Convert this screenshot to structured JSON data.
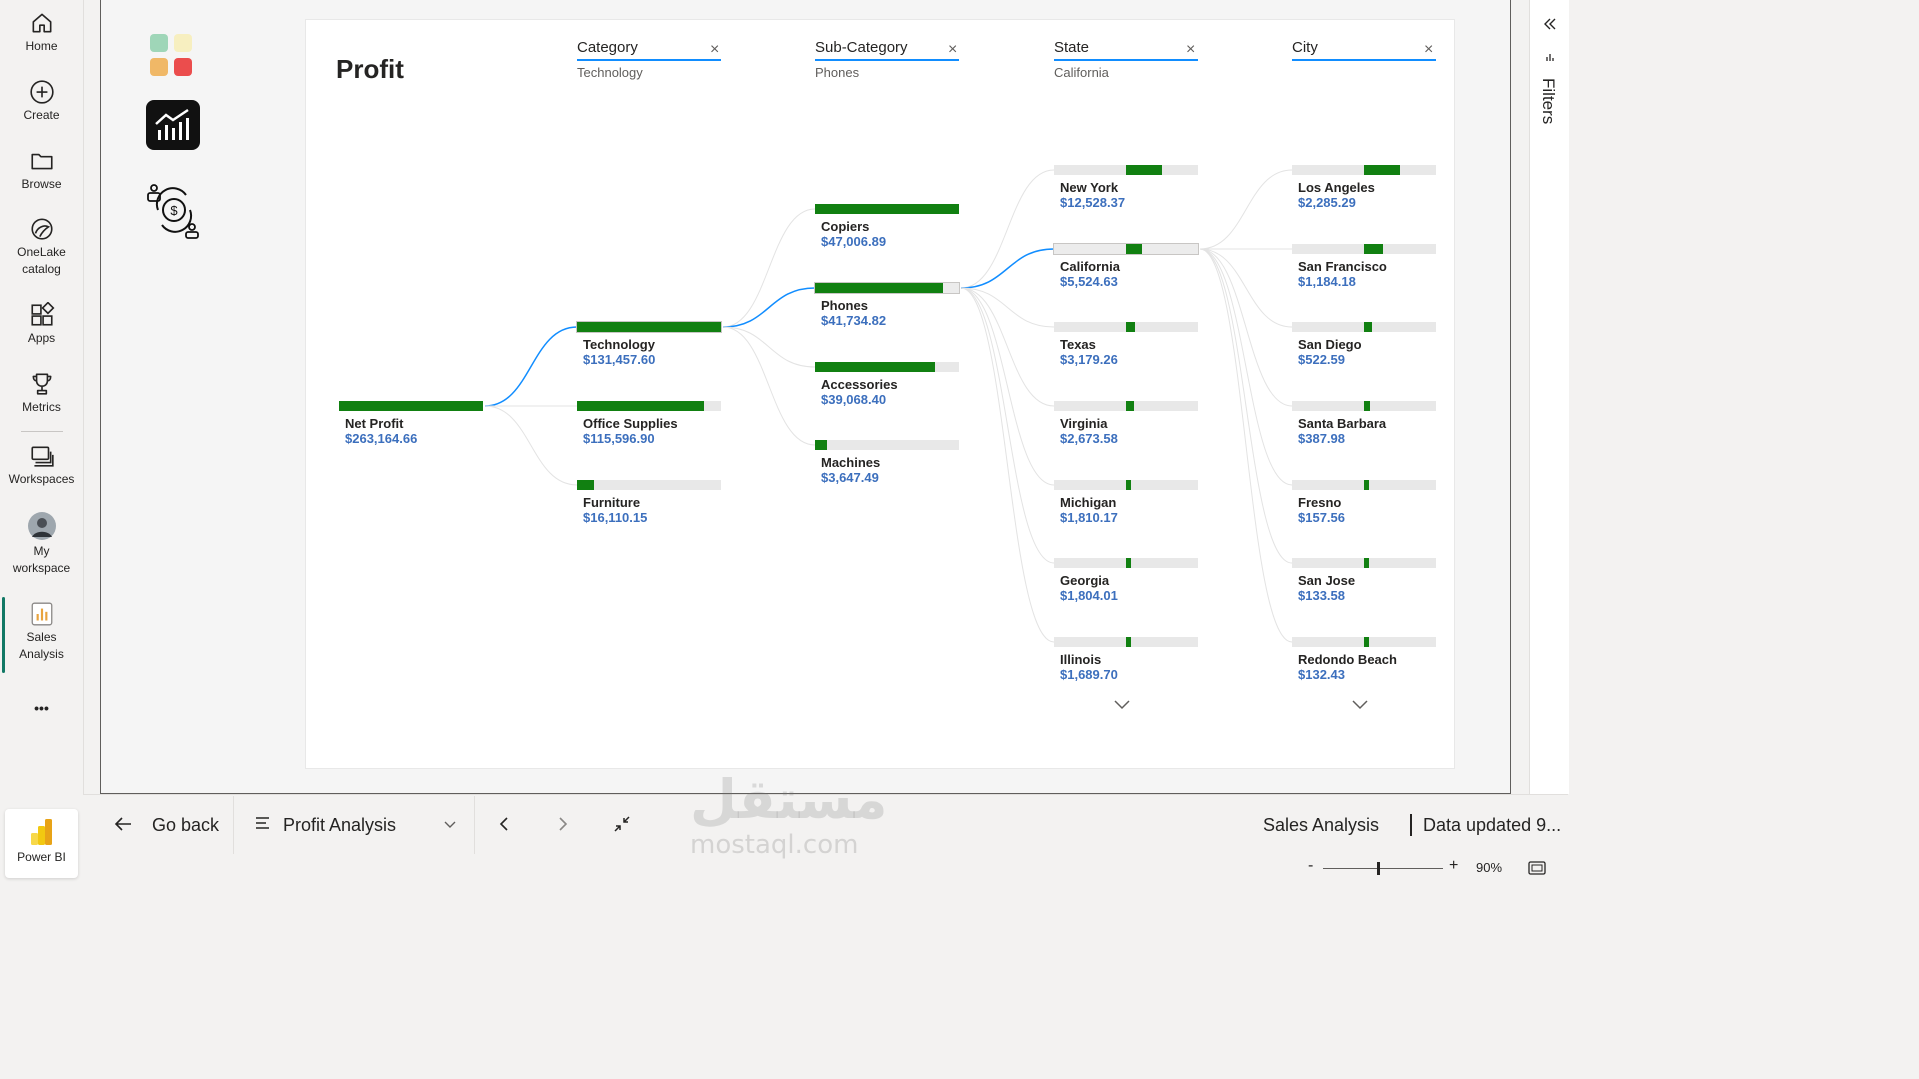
{
  "nav": {
    "home": "Home",
    "create": "Create",
    "browse": "Browse",
    "onelake_l1": "OneLake",
    "onelake_l2": "catalog",
    "apps": "Apps",
    "metrics": "Metrics",
    "workspaces": "Workspaces",
    "myws_l1": "My",
    "myws_l2": "workspace",
    "sales_l1": "Sales",
    "sales_l2": "Analysis",
    "more": "•••",
    "powerbi": "Power BI"
  },
  "filters_pane_label": "Filters",
  "visual": {
    "title": "Profit",
    "levels": [
      {
        "title": "Category",
        "selected": "Technology"
      },
      {
        "title": "Sub-Category",
        "selected": "Phones"
      },
      {
        "title": "State",
        "selected": "California"
      },
      {
        "title": "City",
        "selected": ""
      }
    ],
    "root": {
      "label": "Net Profit",
      "value": "$263,164.66"
    },
    "category": [
      {
        "label": "Technology",
        "value": "$131,457.60",
        "share": 1.0
      },
      {
        "label": "Office Supplies",
        "value": "$115,596.90",
        "share": 0.88
      },
      {
        "label": "Furniture",
        "value": "$16,110.15",
        "share": 0.12
      }
    ],
    "subcategory": [
      {
        "label": "Copiers",
        "value": "$47,006.89",
        "share": 1.0
      },
      {
        "label": "Phones",
        "value": "$41,734.82",
        "share": 0.89
      },
      {
        "label": "Accessories",
        "value": "$39,068.40",
        "share": 0.83
      },
      {
        "label": "Machines",
        "value": "$3,647.49",
        "share": 0.08
      }
    ],
    "state": [
      {
        "label": "New York",
        "value": "$12,528.37",
        "share": 0.5
      },
      {
        "label": "California",
        "value": "$5,524.63",
        "share": 0.22
      },
      {
        "label": "Texas",
        "value": "$3,179.26",
        "share": 0.13
      },
      {
        "label": "Virginia",
        "value": "$2,673.58",
        "share": 0.11
      },
      {
        "label": "Michigan",
        "value": "$1,810.17",
        "share": 0.07
      },
      {
        "label": "Georgia",
        "value": "$1,804.01",
        "share": 0.07
      },
      {
        "label": "Illinois",
        "value": "$1,689.70",
        "share": 0.07
      }
    ],
    "city": [
      {
        "label": "Los Angeles",
        "value": "$2,285.29",
        "share": 0.5
      },
      {
        "label": "San Francisco",
        "value": "$1,184.18",
        "share": 0.26
      },
      {
        "label": "San Diego",
        "value": "$522.59",
        "share": 0.11
      },
      {
        "label": "Santa Barbara",
        "value": "$387.98",
        "share": 0.08
      },
      {
        "label": "Fresno",
        "value": "$157.56",
        "share": 0.03
      },
      {
        "label": "San Jose",
        "value": "$133.58",
        "share": 0.03
      },
      {
        "label": "Redondo Beach",
        "value": "$132.43",
        "share": 0.03
      }
    ]
  },
  "bottom": {
    "go_back": "Go back",
    "page_name": "Profit Analysis",
    "report_name": "Sales Analysis",
    "data_updated": "Data updated 9...",
    "zoom": "90%",
    "zoom_fraction": 0.45
  },
  "watermark": {
    "arabic": "مستقل",
    "latin": "mostaql.com"
  },
  "colors": {
    "bar": "#118011",
    "bar_bg": "#e8e8e8",
    "accent": "#118dff",
    "value_text": "#3c6fbd"
  }
}
